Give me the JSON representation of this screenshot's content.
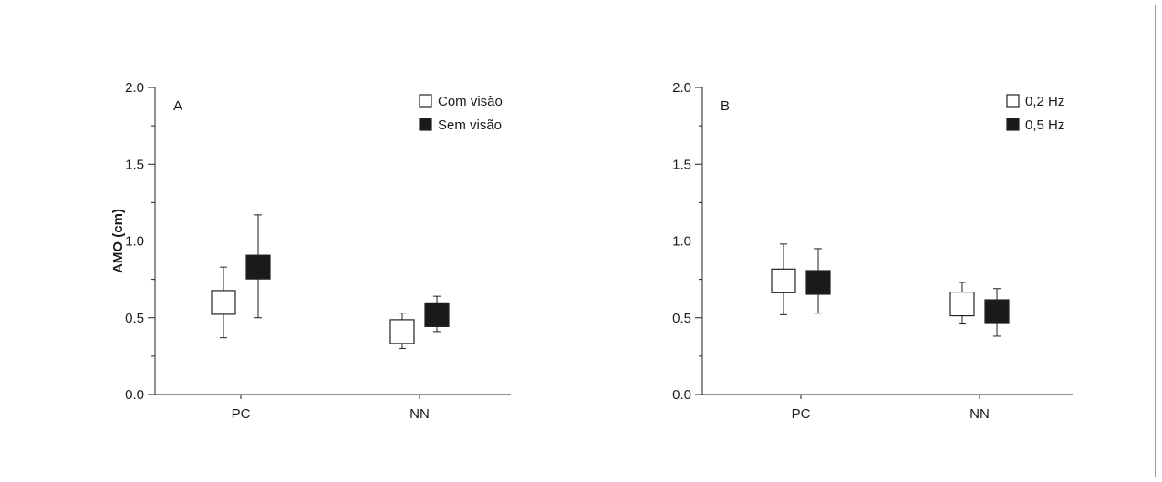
{
  "chart_data": [
    {
      "type": "scatter",
      "panel_label": "A",
      "ylabel": "AMO (cm)",
      "ylim": [
        0,
        2
      ],
      "yticks": [
        "0.0",
        "0.5",
        "1.0",
        "1.5",
        "2.0"
      ],
      "categories": [
        "PC",
        "NN"
      ],
      "legend_position": "top-right",
      "series": [
        {
          "name": "Com visão",
          "fill": "#ffffff",
          "values": [
            0.6,
            0.41
          ],
          "lower": [
            0.37,
            0.3
          ],
          "upper": [
            0.83,
            0.53
          ]
        },
        {
          "name": "Sem visão",
          "fill": "#1a1a1a",
          "values": [
            0.83,
            0.52
          ],
          "lower": [
            0.5,
            0.41
          ],
          "upper": [
            1.17,
            0.64
          ]
        }
      ]
    },
    {
      "type": "scatter",
      "panel_label": "B",
      "ylabel": "",
      "ylim": [
        0,
        2
      ],
      "yticks": [
        "0.0",
        "0.5",
        "1.0",
        "1.5",
        "2.0"
      ],
      "categories": [
        "PC",
        "NN"
      ],
      "legend_position": "top-right",
      "series": [
        {
          "name": "0,2 Hz",
          "fill": "#ffffff",
          "values": [
            0.74,
            0.59
          ],
          "lower": [
            0.52,
            0.46
          ],
          "upper": [
            0.98,
            0.73
          ]
        },
        {
          "name": "0,5 Hz",
          "fill": "#1a1a1a",
          "values": [
            0.73,
            0.54
          ],
          "lower": [
            0.53,
            0.38
          ],
          "upper": [
            0.95,
            0.69
          ]
        }
      ]
    }
  ]
}
